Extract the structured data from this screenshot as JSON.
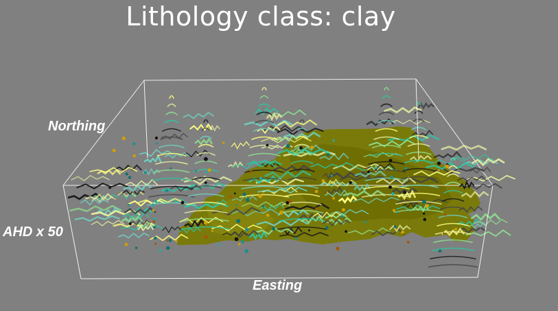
{
  "title": "Lithology class: clay",
  "axes": {
    "northing": "Northing",
    "ahd": "AHD x 50",
    "easting": "Easting"
  },
  "colors": {
    "background": "#808080",
    "box_edges": "#ffffff",
    "clay_surface": "#7a7a00",
    "borehole_palette": [
      "#ffff80",
      "#e8f0a0",
      "#8fe08f",
      "#2ec4a0",
      "#1a1a1a",
      "#444444",
      "#6fd0c0"
    ]
  }
}
